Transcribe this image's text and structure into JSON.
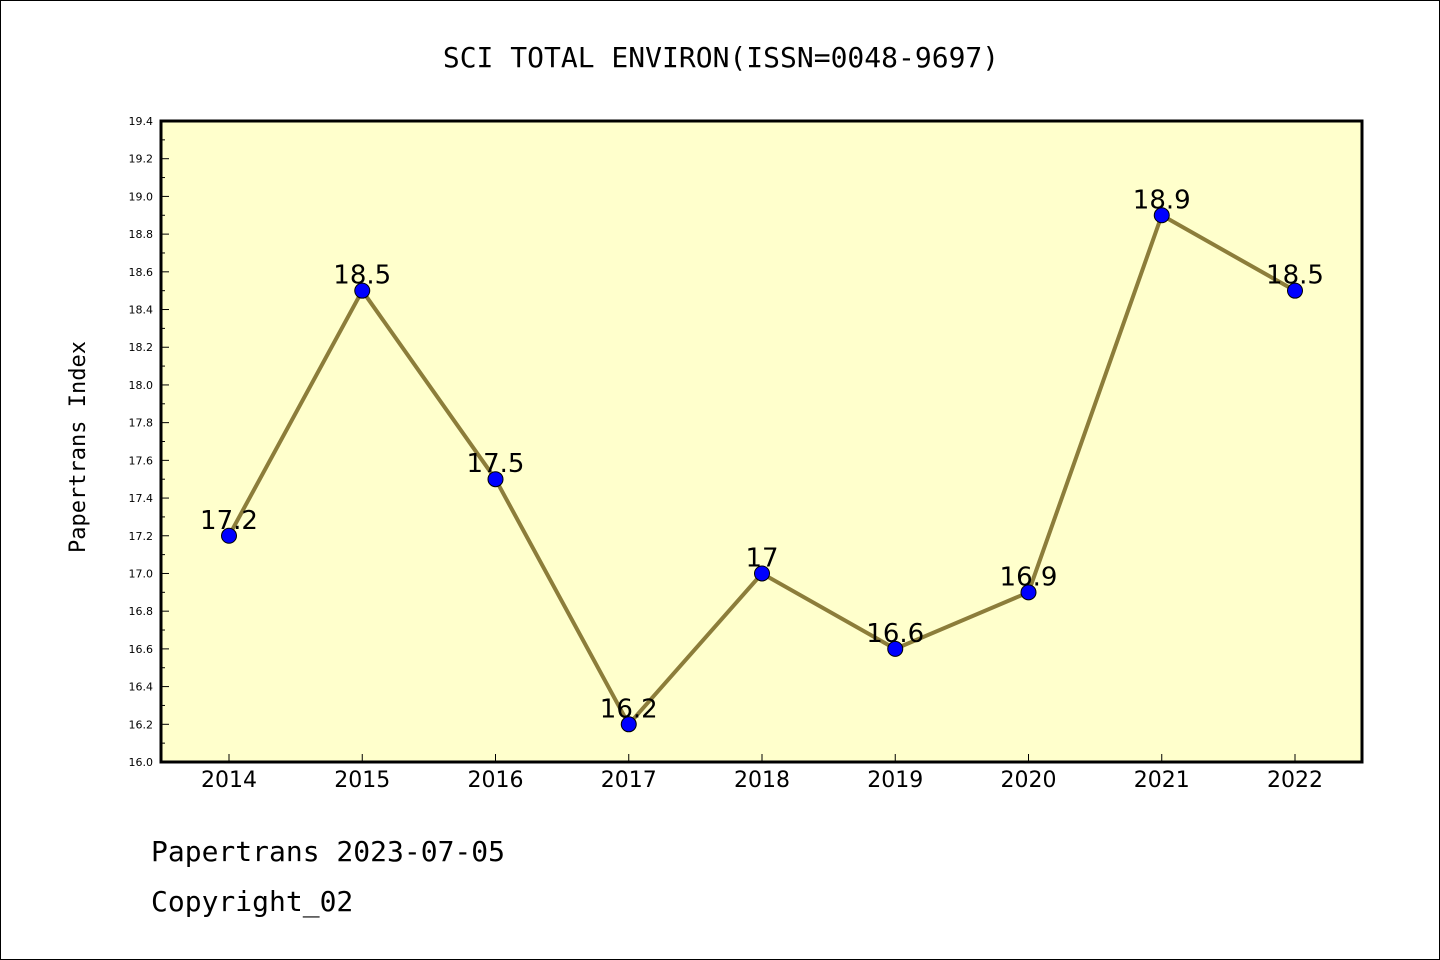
{
  "chart_data": {
    "type": "line",
    "title": "SCI TOTAL ENVIRON(ISSN=0048-9697)",
    "xlabel": "",
    "ylabel": "Papertrans Index",
    "categories": [
      "2014",
      "2015",
      "2016",
      "2017",
      "2018",
      "2019",
      "2020",
      "2021",
      "2022"
    ],
    "series": [
      {
        "values": [
          17.2,
          18.5,
          17.5,
          16.2,
          17.0,
          16.6,
          16.9,
          18.9,
          18.5
        ],
        "labels": [
          "17.2",
          "18.5",
          "17.5",
          "16.2",
          "17",
          "16.6",
          "16.9",
          "18.9",
          "18.5"
        ]
      }
    ],
    "ylim": [
      16.0,
      19.4
    ],
    "yticks": [
      "16.0",
      "16.2",
      "16.4",
      "16.6",
      "16.8",
      "17.0",
      "17.2",
      "17.4",
      "17.6",
      "17.8",
      "18.0",
      "18.2",
      "18.4",
      "18.6",
      "18.8",
      "19.0",
      "19.2",
      "19.4"
    ],
    "grid": false,
    "colors": {
      "plot_background": "#ffffcc",
      "line": "#8c7d3a",
      "marker": "#0000ff"
    }
  },
  "footer": {
    "line1": "Papertrans 2023-07-05",
    "line2": "Copyright_02"
  }
}
